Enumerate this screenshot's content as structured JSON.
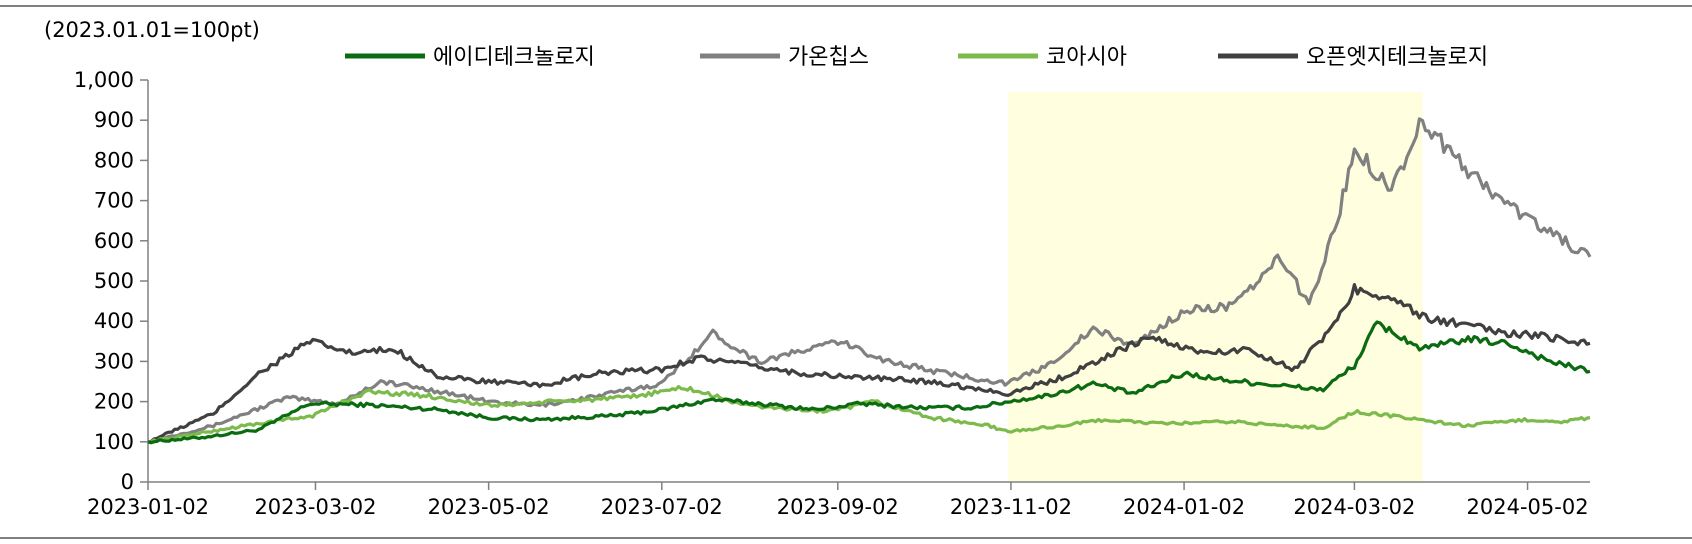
{
  "chart_data": {
    "type": "line",
    "unit_label": "(2023.01.01=100pt)",
    "ylim": [
      0,
      1000
    ],
    "yticks": [
      0,
      100,
      200,
      300,
      400,
      500,
      600,
      700,
      800,
      900,
      1000
    ],
    "ytick_labels": [
      "0",
      "100",
      "200",
      "300",
      "400",
      "500",
      "600",
      "700",
      "800",
      "900",
      "1,000"
    ],
    "xlim": [
      "2023-01-02",
      "2024-05-24"
    ],
    "xtick_labels": [
      "2023-01-02",
      "2023-03-02",
      "2023-05-02",
      "2023-07-02",
      "2023-09-02",
      "2023-11-02",
      "2024-01-02",
      "2024-03-02",
      "2024-05-02"
    ],
    "grid": false,
    "legend_position": "top",
    "highlight": {
      "start": "2023-11-01",
      "end": "2024-03-26",
      "color": "#FFFFE0"
    },
    "series": [
      {
        "name": "에이디테크놀로지",
        "color": "#0B6B10",
        "points": [
          [
            "2023-01-02",
            100
          ],
          [
            "2023-01-20",
            110
          ],
          [
            "2023-02-10",
            130
          ],
          [
            "2023-02-28",
            195
          ],
          [
            "2023-03-20",
            192
          ],
          [
            "2023-04-15",
            180
          ],
          [
            "2023-05-02",
            160
          ],
          [
            "2023-05-20",
            155
          ],
          [
            "2023-06-15",
            165
          ],
          [
            "2023-07-02",
            180
          ],
          [
            "2023-07-20",
            205
          ],
          [
            "2023-08-05",
            195
          ],
          [
            "2023-08-25",
            180
          ],
          [
            "2023-09-10",
            195
          ],
          [
            "2023-09-30",
            185
          ],
          [
            "2023-10-20",
            185
          ],
          [
            "2023-11-01",
            200
          ],
          [
            "2023-11-15",
            215
          ],
          [
            "2023-12-01",
            245
          ],
          [
            "2023-12-15",
            220
          ],
          [
            "2024-01-02",
            270
          ],
          [
            "2024-01-15",
            255
          ],
          [
            "2024-02-05",
            240
          ],
          [
            "2024-02-20",
            230
          ],
          [
            "2024-03-02",
            290
          ],
          [
            "2024-03-10",
            395
          ],
          [
            "2024-03-26",
            330
          ],
          [
            "2024-04-10",
            355
          ],
          [
            "2024-04-25",
            345
          ],
          [
            "2024-05-10",
            300
          ],
          [
            "2024-05-24",
            275
          ]
        ]
      },
      {
        "name": "가온칩스",
        "color": "#808080",
        "points": [
          [
            "2023-01-02",
            100
          ],
          [
            "2023-01-25",
            140
          ],
          [
            "2023-02-20",
            210
          ],
          [
            "2023-03-10",
            195
          ],
          [
            "2023-03-25",
            250
          ],
          [
            "2023-04-15",
            225
          ],
          [
            "2023-05-02",
            200
          ],
          [
            "2023-05-20",
            190
          ],
          [
            "2023-06-10",
            215
          ],
          [
            "2023-07-02",
            245
          ],
          [
            "2023-07-20",
            370
          ],
          [
            "2023-08-05",
            300
          ],
          [
            "2023-08-20",
            325
          ],
          [
            "2023-09-02",
            350
          ],
          [
            "2023-09-20",
            300
          ],
          [
            "2023-10-10",
            270
          ],
          [
            "2023-11-01",
            245
          ],
          [
            "2023-11-15",
            290
          ],
          [
            "2023-12-01",
            380
          ],
          [
            "2023-12-15",
            340
          ],
          [
            "2024-01-02",
            425
          ],
          [
            "2024-01-20",
            440
          ],
          [
            "2024-02-05",
            560
          ],
          [
            "2024-02-15",
            440
          ],
          [
            "2024-02-25",
            650
          ],
          [
            "2024-03-02",
            830
          ],
          [
            "2024-03-15",
            730
          ],
          [
            "2024-03-26",
            900
          ],
          [
            "2024-04-10",
            780
          ],
          [
            "2024-04-25",
            690
          ],
          [
            "2024-05-10",
            620
          ],
          [
            "2024-05-24",
            560
          ]
        ]
      },
      {
        "name": "코아시아",
        "color": "#7DBA4C",
        "points": [
          [
            "2023-01-02",
            100
          ],
          [
            "2023-02-05",
            140
          ],
          [
            "2023-03-01",
            165
          ],
          [
            "2023-03-20",
            225
          ],
          [
            "2023-04-10",
            215
          ],
          [
            "2023-05-02",
            190
          ],
          [
            "2023-05-25",
            200
          ],
          [
            "2023-06-20",
            210
          ],
          [
            "2023-07-10",
            235
          ],
          [
            "2023-08-01",
            190
          ],
          [
            "2023-08-30",
            175
          ],
          [
            "2023-09-15",
            200
          ],
          [
            "2023-10-05",
            160
          ],
          [
            "2023-10-25",
            140
          ],
          [
            "2023-11-01",
            125
          ],
          [
            "2023-11-20",
            140
          ],
          [
            "2023-12-05",
            155
          ],
          [
            "2023-12-25",
            145
          ],
          [
            "2024-01-20",
            150
          ],
          [
            "2024-02-05",
            140
          ],
          [
            "2024-02-20",
            135
          ],
          [
            "2024-03-02",
            175
          ],
          [
            "2024-03-20",
            160
          ],
          [
            "2024-04-10",
            140
          ],
          [
            "2024-05-02",
            155
          ],
          [
            "2024-05-15",
            150
          ],
          [
            "2024-05-24",
            160
          ]
        ]
      },
      {
        "name": "오픈엣지테크놀로지",
        "color": "#404040",
        "points": [
          [
            "2023-01-02",
            100
          ],
          [
            "2023-01-25",
            170
          ],
          [
            "2023-02-10",
            270
          ],
          [
            "2023-02-28",
            350
          ],
          [
            "2023-03-15",
            320
          ],
          [
            "2023-03-30",
            330
          ],
          [
            "2023-04-15",
            260
          ],
          [
            "2023-05-02",
            250
          ],
          [
            "2023-05-20",
            240
          ],
          [
            "2023-06-10",
            270
          ],
          [
            "2023-07-02",
            280
          ],
          [
            "2023-07-15",
            310
          ],
          [
            "2023-08-01",
            290
          ],
          [
            "2023-08-20",
            270
          ],
          [
            "2023-09-10",
            260
          ],
          [
            "2023-10-05",
            250
          ],
          [
            "2023-11-01",
            220
          ],
          [
            "2023-11-20",
            260
          ],
          [
            "2023-12-05",
            310
          ],
          [
            "2023-12-20",
            360
          ],
          [
            "2024-01-10",
            320
          ],
          [
            "2024-01-25",
            330
          ],
          [
            "2024-02-10",
            280
          ],
          [
            "2024-02-25",
            400
          ],
          [
            "2024-03-02",
            480
          ],
          [
            "2024-03-15",
            460
          ],
          [
            "2024-03-26",
            410
          ],
          [
            "2024-04-10",
            390
          ],
          [
            "2024-04-25",
            370
          ],
          [
            "2024-05-10",
            360
          ],
          [
            "2024-05-24",
            345
          ]
        ]
      }
    ]
  }
}
